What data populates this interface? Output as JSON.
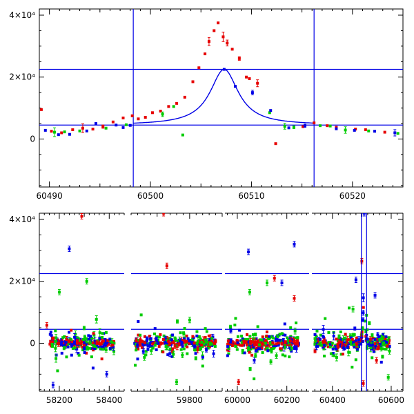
{
  "chart_data": [
    {
      "type": "scatter",
      "title": "",
      "xlabel": "",
      "ylabel": "",
      "xlim": [
        60489,
        60525
      ],
      "ylim": [
        -15500,
        42000
      ],
      "x_ticks": [
        60490,
        60500,
        60510,
        60520
      ],
      "x_tick_labels": [
        "60490",
        "60500",
        "60510",
        "60520"
      ],
      "y_ticks": [
        0,
        20000,
        40000
      ],
      "y_tick_labels": [
        "0",
        "2×10⁴",
        "4×10⁴"
      ],
      "reference_lines": {
        "horizontal": [
          4500,
          22500
        ],
        "vertical": [
          60498.3,
          60516.2
        ]
      },
      "model_curve": {
        "baseline": 4500,
        "peak": 22500,
        "t0": 60507.3,
        "width": 1.7
      },
      "colors": {
        "red": "#e60000",
        "green": "#00cc00",
        "blue": "#0000e6"
      },
      "series": [
        {
          "color": "#e60000",
          "points": [
            [
              60489.2,
              9500
            ],
            [
              60490.2,
              2500
            ],
            [
              60491.2,
              2000
            ],
            [
              60492.3,
              3000
            ],
            [
              60493.3,
              3500
            ],
            [
              60494.3,
              3200
            ],
            [
              60495.3,
              4000
            ],
            [
              60496.3,
              5500
            ],
            [
              60497.3,
              6800
            ],
            [
              60498.2,
              7500
            ],
            [
              60498.8,
              6500
            ],
            [
              60499.5,
              7000
            ],
            [
              60500.2,
              8500
            ],
            [
              60501,
              9000
            ],
            [
              60501.8,
              10500
            ],
            [
              60502.6,
              11500
            ],
            [
              60503.4,
              13500
            ],
            [
              60504.2,
              18500
            ],
            [
              60504.8,
              23000
            ],
            [
              60505.4,
              27500
            ],
            [
              60505.8,
              31500
            ],
            [
              60506.3,
              35000
            ],
            [
              60506.7,
              37500
            ],
            [
              60507.2,
              33000
            ],
            [
              60507.6,
              31000
            ],
            [
              60508.1,
              29000
            ],
            [
              60508.8,
              26000
            ],
            [
              60509.5,
              20000
            ],
            [
              60509.8,
              19500
            ],
            [
              60510.6,
              18000
            ],
            [
              60512.4,
              -1500
            ],
            [
              60515.1,
              4000
            ],
            [
              60516.2,
              5200
            ],
            [
              60517.5,
              4300
            ],
            [
              60518.4,
              3800
            ],
            [
              60520.3,
              3200
            ],
            [
              60521.3,
              3000
            ],
            [
              60523.2,
              2200
            ]
          ]
        },
        {
          "color": "#00cc00",
          "points": [
            [
              60490.5,
              2200
            ],
            [
              60491.5,
              2300
            ],
            [
              60493,
              2600
            ],
            [
              60495.6,
              3500
            ],
            [
              60497.6,
              4600
            ],
            [
              60501.2,
              8000
            ],
            [
              60502.3,
              10500
            ],
            [
              60503.2,
              1300
            ],
            [
              60511.8,
              8500
            ],
            [
              60513.3,
              4100
            ],
            [
              60514.2,
              3800
            ],
            [
              60516.8,
              4300
            ],
            [
              60517.8,
              4200
            ],
            [
              60519.3,
              2900
            ],
            [
              60521.6,
              2600
            ],
            [
              60524.5,
              1800
            ]
          ]
        },
        {
          "color": "#0000e6",
          "points": [
            [
              60489.6,
              2800
            ],
            [
              60490.9,
              1400
            ],
            [
              60492,
              1500
            ],
            [
              60493.7,
              2600
            ],
            [
              60494.6,
              5000
            ],
            [
              60496.6,
              4500
            ],
            [
              60497.3,
              3700
            ],
            [
              60498,
              4400
            ],
            [
              60507.3,
              22500
            ],
            [
              60508.4,
              17000
            ],
            [
              60510.1,
              15000
            ],
            [
              60511.9,
              9200
            ],
            [
              60513.7,
              3600
            ],
            [
              60515.3,
              4300
            ],
            [
              60518.4,
              3300
            ],
            [
              60520.2,
              2800
            ],
            [
              60522.2,
              2500
            ],
            [
              60524.2,
              2000
            ]
          ]
        }
      ]
    },
    {
      "type": "scatter",
      "title": "",
      "xlabel": "",
      "ylabel": "",
      "xlim": [
        58120,
        60640
      ],
      "ylim": [
        -15500,
        42000
      ],
      "broken_axis_segments": [
        [
          58120,
          58460
        ],
        [
          59620,
          59900
        ],
        [
          59950,
          60290
        ],
        [
          60330,
          60640
        ]
      ],
      "x_ticks": [
        58200,
        58400,
        59800,
        60000,
        60200,
        60400,
        60600
      ],
      "x_tick_labels": [
        "58200",
        "58400",
        "59800",
        "60000",
        "60200",
        "60400",
        "60600"
      ],
      "y_ticks": [
        0,
        20000,
        40000
      ],
      "y_tick_labels": [
        "0",
        "2×10⁴",
        "4×10⁴"
      ],
      "reference_lines": {
        "horizontal": [
          4500,
          22500
        ],
        "vertical": [
          60498.3,
          60516.2
        ]
      },
      "seasons": [
        {
          "start": 58160,
          "end": 58420
        },
        {
          "start": 59630,
          "end": 59880
        },
        {
          "start": 59960,
          "end": 60250
        },
        {
          "start": 60340,
          "end": 60595
        }
      ],
      "outliers": [
        [
          58290,
          41000,
          "#e60000"
        ],
        [
          58240,
          30500,
          "#0000e6"
        ],
        [
          58310,
          20000,
          "#00cc00"
        ],
        [
          58200,
          16500,
          "#00cc00"
        ],
        [
          58150,
          5800,
          "#e60000"
        ],
        [
          58175,
          -13500,
          "#0000e6"
        ],
        [
          58390,
          -10000,
          "#0000e6"
        ],
        [
          59730,
          25000,
          "#e60000"
        ],
        [
          59720,
          42000,
          "#e60000"
        ],
        [
          59800,
          7500,
          "#00cc00"
        ],
        [
          59760,
          -12500,
          "#00cc00"
        ],
        [
          60045,
          29500,
          "#0000e6"
        ],
        [
          60230,
          32000,
          "#0000e6"
        ],
        [
          60120,
          19500,
          "#00cc00"
        ],
        [
          60180,
          19500,
          "#0000e6"
        ],
        [
          60150,
          21000,
          "#e60000"
        ],
        [
          60050,
          16500,
          "#00cc00"
        ],
        [
          60230,
          14500,
          "#e60000"
        ],
        [
          60005,
          -12500,
          "#e60000"
        ],
        [
          60480,
          20500,
          "#0000e6"
        ],
        [
          60500,
          26500,
          "#e60000"
        ],
        [
          60545,
          15500,
          "#0000e6"
        ],
        [
          60470,
          11000,
          "#00cc00"
        ],
        [
          60590,
          -11000,
          "#00cc00"
        ],
        [
          60508,
          42000,
          "#0000e6"
        ],
        [
          60505,
          -13000,
          "#e60000"
        ],
        [
          60550,
          -5500,
          "#e60000"
        ]
      ],
      "colors": {
        "red": "#e60000",
        "green": "#00cc00",
        "blue": "#0000e6"
      }
    }
  ]
}
